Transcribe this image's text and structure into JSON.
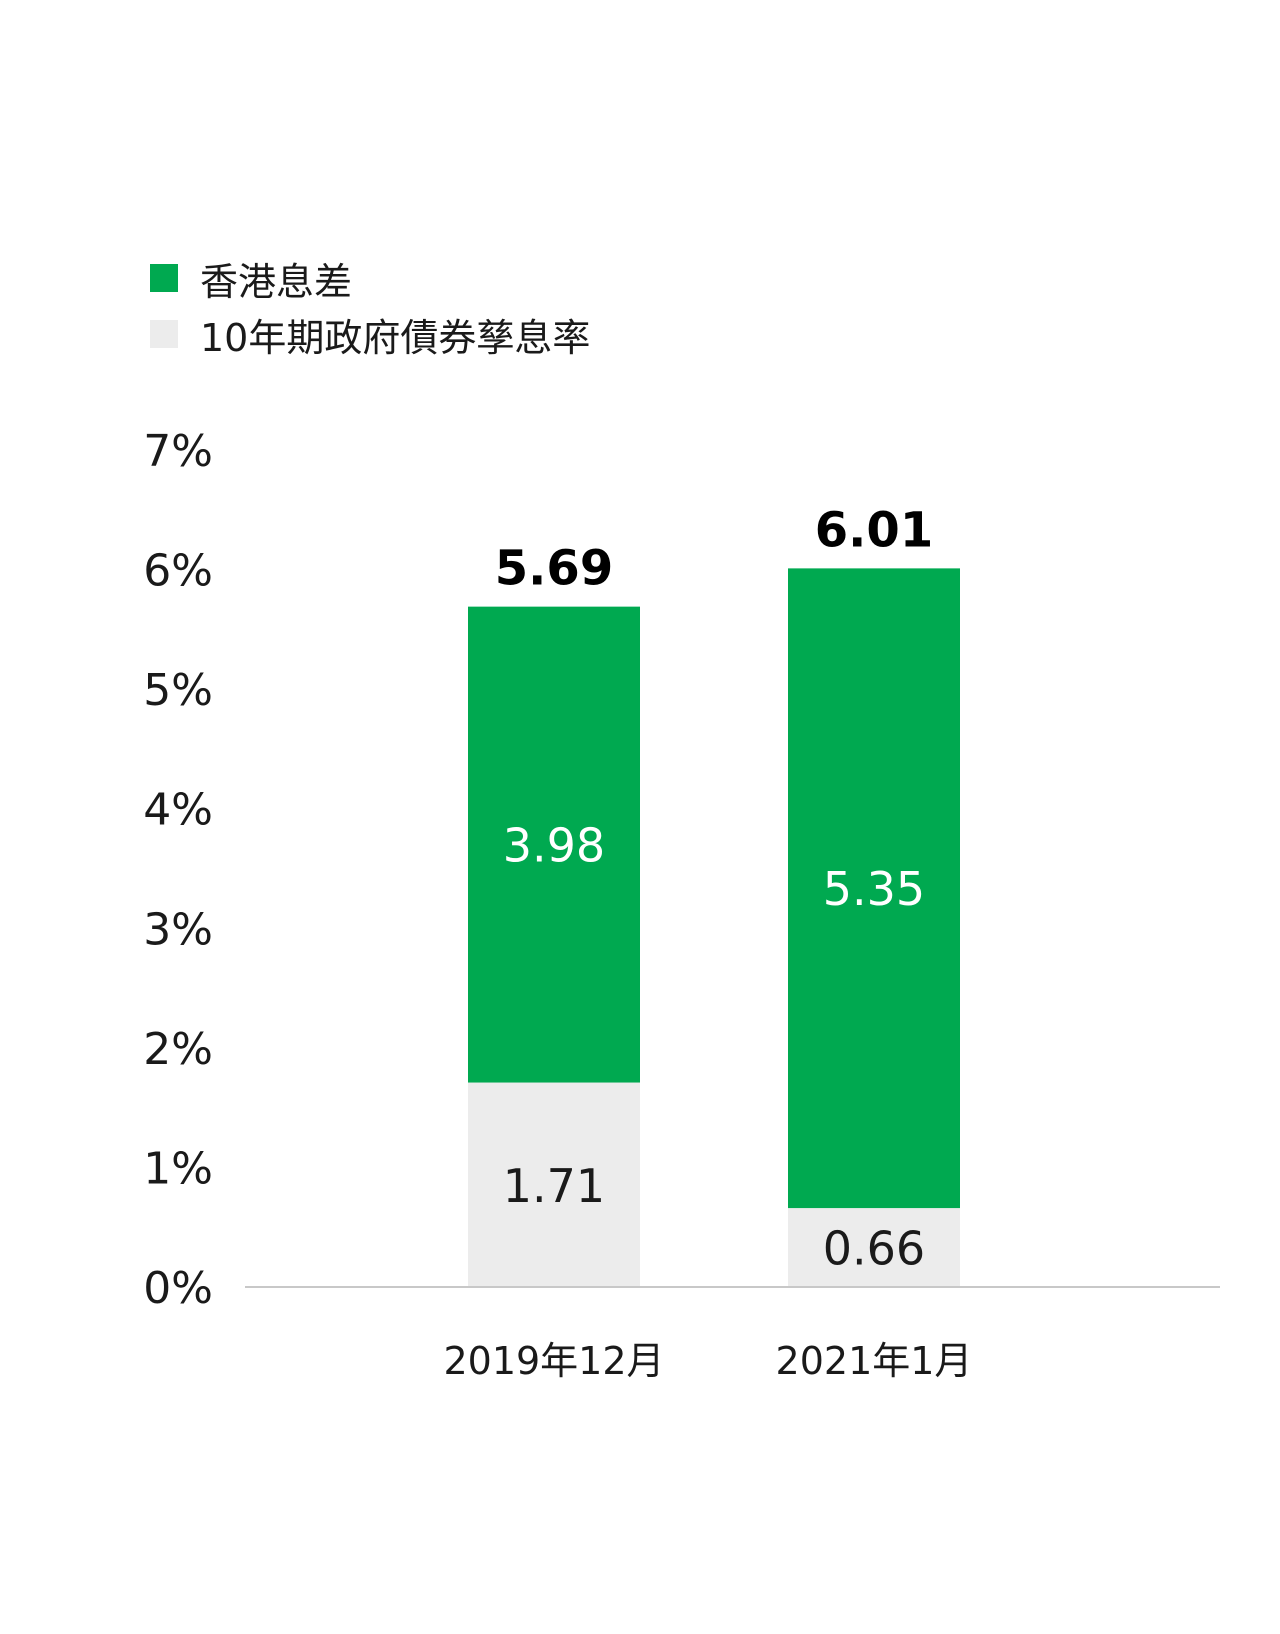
{
  "chart_data": {
    "type": "bar",
    "stacked": true,
    "categories": [
      "2019年12月",
      "2021年1月"
    ],
    "series": [
      {
        "name": "10年期政府債券孳息率",
        "values": [
          1.71,
          0.66
        ],
        "color": "#ececec",
        "label_color": "#1a1a1a"
      },
      {
        "name": "香港息差",
        "values": [
          3.98,
          5.35
        ],
        "color": "#00a950",
        "label_color": "#ffffff"
      }
    ],
    "totals": [
      5.69,
      6.01
    ],
    "total_labels": [
      "5.69",
      "6.01"
    ],
    "segment_labels": [
      [
        "1.71",
        "0.66"
      ],
      [
        "3.98",
        "5.35"
      ]
    ],
    "ylim": [
      0,
      7
    ],
    "y_ticks": [
      0,
      1,
      2,
      3,
      4,
      5,
      6,
      7
    ],
    "y_tick_labels": [
      "0%",
      "1%",
      "2%",
      "3%",
      "4%",
      "5%",
      "6%",
      "7%"
    ],
    "legend_position": "top-left",
    "axis_color": "#c8c8c8",
    "grid": false,
    "title": "",
    "xlabel": "",
    "ylabel": ""
  },
  "legend": {
    "items": [
      {
        "label": "香港息差",
        "color": "#00a950"
      },
      {
        "label": "10年期政府債券孳息率",
        "color": "#ececec"
      }
    ]
  }
}
